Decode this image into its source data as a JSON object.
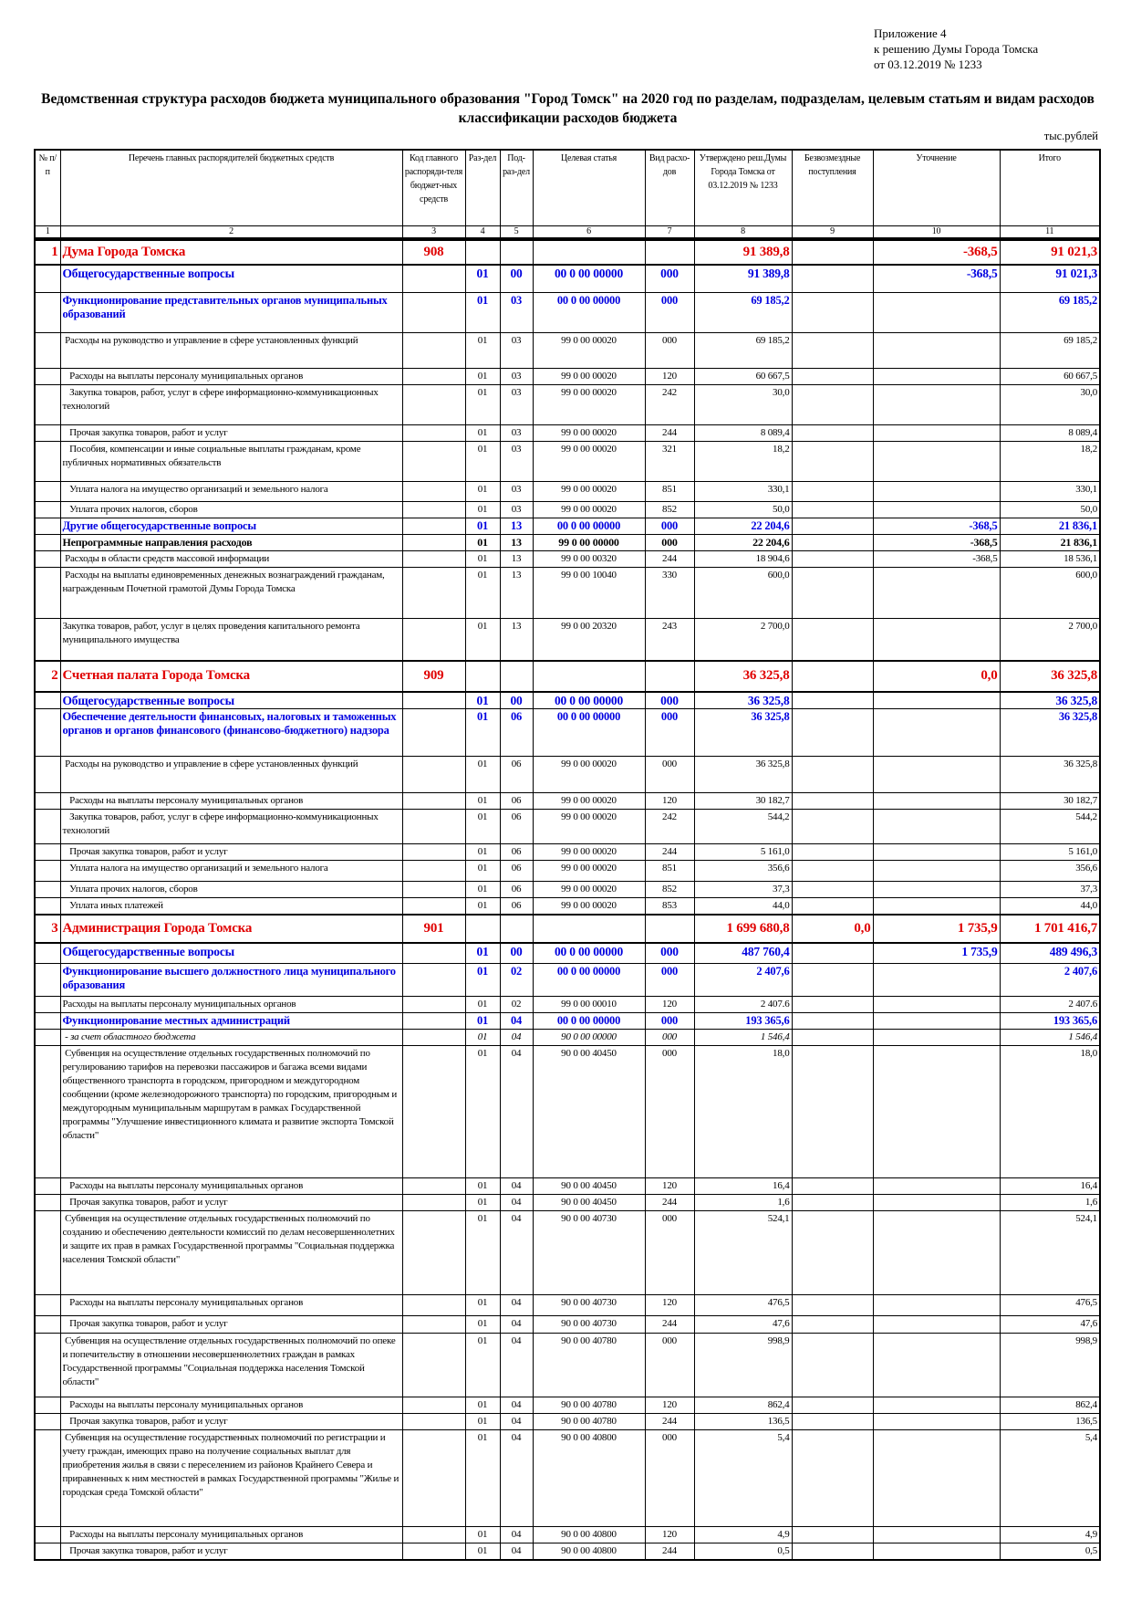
{
  "appendix": {
    "line1": "Приложение 4",
    "line2": "к решению Думы Города Томска",
    "line3": "от 03.12.2019 № 1233"
  },
  "title": "Ведомственная структура расходов бюджета муниципального образования \"Город Томск\" на 2020 год по разделам, подразделам, целевым статьям и видам расходов классификации расходов бюджета",
  "units": "тыс.рублей",
  "headers": [
    "№ п/п",
    "Перечень главных распорядителей бюджетных средств",
    "Код главного распоряди-теля бюджет-ных средств",
    "Раз-дел",
    "Под-раз-дел",
    "Целевая статья",
    "Вид расхо-дов",
    "Утверждено реш.Думы Города Томска от 03.12.2019 № 1233",
    "Безвозмездные поступления",
    "Уточнение",
    "Итого"
  ],
  "col_numbers": [
    "1",
    "2",
    "3",
    "4",
    "5",
    "6",
    "7",
    "8",
    "9",
    "10",
    "11"
  ],
  "colors": {
    "org": "#e00000",
    "section": "#0000e0"
  },
  "rows": [
    {
      "type": "org",
      "n": "1",
      "name": "Дума Города Томска",
      "code": "908",
      "rz": "",
      "pr": "",
      "cs": "",
      "vr": "",
      "c8": "91 389,8",
      "c9": "",
      "c10": "-368,5",
      "c11": "91 021,3"
    },
    {
      "type": "sec",
      "n": "",
      "name": "Общегосударственные вопросы",
      "code": "",
      "rz": "01",
      "pr": "00",
      "cs": "00 0 00 00000",
      "vr": "000",
      "c8": "91 389,8",
      "c9": "",
      "c10": "-368,5",
      "c11": "91 021,3"
    },
    {
      "type": "sub",
      "n": "",
      "name": "Функционирование представительных органов муниципальных образований",
      "code": "",
      "rz": "01",
      "pr": "03",
      "cs": "00 0 00 00000",
      "vr": "000",
      "c8": "69 185,2",
      "c9": "",
      "c10": "",
      "c11": "69 185,2"
    },
    {
      "type": "norm",
      "n": "",
      "name": " Расходы на руководство и управление в сфере установленных функций",
      "code": "",
      "rz": "01",
      "pr": "03",
      "cs": "99 0 00 00020",
      "vr": "000",
      "c8": "69 185,2",
      "c9": "",
      "c10": "",
      "c11": "69 185,2"
    },
    {
      "type": "norm",
      "n": "",
      "name": "   Расходы на выплаты персоналу муниципальных органов",
      "code": "",
      "rz": "01",
      "pr": "03",
      "cs": "99 0 00 00020",
      "vr": "120",
      "c8": "60 667,5",
      "c9": "",
      "c10": "",
      "c11": "60 667,5"
    },
    {
      "type": "norm",
      "n": "",
      "name": "   Закупка товаров, работ, услуг в сфере информационно-коммуникационных технологий",
      "code": "",
      "rz": "01",
      "pr": "03",
      "cs": "99 0 00 00020",
      "vr": "242",
      "c8": "30,0",
      "c9": "",
      "c10": "",
      "c11": "30,0"
    },
    {
      "type": "norm",
      "n": "",
      "name": "   Прочая закупка товаров, работ и услуг",
      "code": "",
      "rz": "01",
      "pr": "03",
      "cs": "99 0 00 00020",
      "vr": "244",
      "c8": "8 089,4",
      "c9": "",
      "c10": "",
      "c11": "8 089,4"
    },
    {
      "type": "norm",
      "n": "",
      "name": "   Пособия, компенсации и иные социальные выплаты гражданам, кроме публичных нормативных обязательств",
      "code": "",
      "rz": "01",
      "pr": "03",
      "cs": "99 0 00 00020",
      "vr": "321",
      "c8": "18,2",
      "c9": "",
      "c10": "",
      "c11": "18,2"
    },
    {
      "type": "norm",
      "n": "",
      "name": "   Уплата налога на имущество организаций и земельного налога",
      "code": "",
      "rz": "01",
      "pr": "03",
      "cs": "99 0 00 00020",
      "vr": "851",
      "c8": "330,1",
      "c9": "",
      "c10": "",
      "c11": "330,1"
    },
    {
      "type": "norm",
      "n": "",
      "name": "   Уплата прочих налогов, сборов",
      "code": "",
      "rz": "01",
      "pr": "03",
      "cs": "99 0 00 00020",
      "vr": "852",
      "c8": "50,0",
      "c9": "",
      "c10": "",
      "c11": "50,0"
    },
    {
      "type": "sub",
      "n": "",
      "name": "Другие общегосударственные вопросы",
      "code": "",
      "rz": "01",
      "pr": "13",
      "cs": "00 0 00 00000",
      "vr": "000",
      "c8": "22 204,6",
      "c9": "",
      "c10": "-368,5",
      "c11": "21 836,1"
    },
    {
      "type": "bold",
      "n": "",
      "name": "Непрограммные направления расходов",
      "code": "",
      "rz": "01",
      "pr": "13",
      "cs": "99 0 00 00000",
      "vr": "000",
      "c8": "22 204,6",
      "c9": "",
      "c10": "-368,5",
      "c11": "21 836,1"
    },
    {
      "type": "norm",
      "n": "",
      "name": " Расходы в области средств массовой информации",
      "code": "",
      "rz": "01",
      "pr": "13",
      "cs": "99 0 00 00320",
      "vr": "244",
      "c8": "18 904,6",
      "c9": "",
      "c10": "-368,5",
      "c11": "18 536,1"
    },
    {
      "type": "norm",
      "n": "",
      "name": " Расходы на выплаты единовременных денежных вознаграждений гражданам, награжденным Почетной грамотой Думы Города Томска",
      "code": "",
      "rz": "01",
      "pr": "13",
      "cs": "99 0 00 10040",
      "vr": "330",
      "c8": "600,0",
      "c9": "",
      "c10": "",
      "c11": "600,0"
    },
    {
      "type": "normb",
      "n": "",
      "name": "Закупка товаров, работ, услуг в целях проведения капитального ремонта муниципального имущества",
      "code": "",
      "rz": "01",
      "pr": "13",
      "cs": "99 0 00 20320",
      "vr": "243",
      "c8": "2 700,0",
      "c9": "",
      "c10": "",
      "c11": "2 700,0"
    },
    {
      "type": "org",
      "n": "2",
      "name": "Счетная палата Города Томска",
      "code": "909",
      "rz": "",
      "pr": "",
      "cs": "",
      "vr": "",
      "c8": "36 325,8",
      "c9": "",
      "c10": "0,0",
      "c11": "36 325,8"
    },
    {
      "type": "sec",
      "n": "",
      "name": "Общегосударственные вопросы",
      "code": "",
      "rz": "01",
      "pr": "00",
      "cs": "00 0 00 00000",
      "vr": "000",
      "c8": "36 325,8",
      "c9": "",
      "c10": "",
      "c11": "36 325,8"
    },
    {
      "type": "sub",
      "n": "",
      "name": "Обеспечение деятельности финансовых, налоговых и таможенных органов и органов финансового (финансово-бюджетного) надзора",
      "code": "",
      "rz": "01",
      "pr": "06",
      "cs": "00 0 00 00000",
      "vr": "000",
      "c8": "36 325,8",
      "c9": "",
      "c10": "",
      "c11": "36 325,8"
    },
    {
      "type": "norm",
      "n": "",
      "name": " Расходы на руководство и управление в сфере установленных функций",
      "code": "",
      "rz": "01",
      "pr": "06",
      "cs": "99 0 00 00020",
      "vr": "000",
      "c8": "36 325,8",
      "c9": "",
      "c10": "",
      "c11": "36 325,8"
    },
    {
      "type": "norm",
      "n": "",
      "name": "   Расходы на выплаты персоналу муниципальных органов",
      "code": "",
      "rz": "01",
      "pr": "06",
      "cs": "99 0 00 00020",
      "vr": "120",
      "c8": "30 182,7",
      "c9": "",
      "c10": "",
      "c11": "30 182,7"
    },
    {
      "type": "norm",
      "n": "",
      "name": "   Закупка товаров, работ, услуг в сфере информационно-коммуникационных технологий",
      "code": "",
      "rz": "01",
      "pr": "06",
      "cs": "99 0 00 00020",
      "vr": "242",
      "c8": "544,2",
      "c9": "",
      "c10": "",
      "c11": "544,2"
    },
    {
      "type": "norm",
      "n": "",
      "name": "   Прочая закупка товаров, работ и услуг",
      "code": "",
      "rz": "01",
      "pr": "06",
      "cs": "99 0 00 00020",
      "vr": "244",
      "c8": "5 161,0",
      "c9": "",
      "c10": "",
      "c11": "5 161,0"
    },
    {
      "type": "norm",
      "n": "",
      "name": "   Уплата налога на имущество организаций и земельного налога",
      "code": "",
      "rz": "01",
      "pr": "06",
      "cs": "99 0 00 00020",
      "vr": "851",
      "c8": "356,6",
      "c9": "",
      "c10": "",
      "c11": "356,6"
    },
    {
      "type": "norm",
      "n": "",
      "name": "   Уплата прочих налогов, сборов",
      "code": "",
      "rz": "01",
      "pr": "06",
      "cs": "99 0 00 00020",
      "vr": "852",
      "c8": "37,3",
      "c9": "",
      "c10": "",
      "c11": "37,3"
    },
    {
      "type": "norm",
      "n": "",
      "name": "   Уплата иных платежей",
      "code": "",
      "rz": "01",
      "pr": "06",
      "cs": "99 0 00 00020",
      "vr": "853",
      "c8": "44,0",
      "c9": "",
      "c10": "",
      "c11": "44,0"
    },
    {
      "type": "org",
      "n": "3",
      "name": "Администрация Города Томска",
      "code": "901",
      "rz": "",
      "pr": "",
      "cs": "",
      "vr": "",
      "c8": "1 699 680,8",
      "c9": "0,0",
      "c10": "1 735,9",
      "c11": "1 701 416,7"
    },
    {
      "type": "sec",
      "n": "",
      "name": "Общегосударственные вопросы",
      "code": "",
      "rz": "01",
      "pr": "00",
      "cs": "00 0 00 00000",
      "vr": "000",
      "c8": "487 760,4",
      "c9": "",
      "c10": "1 735,9",
      "c11": "489 496,3"
    },
    {
      "type": "sub",
      "n": "",
      "name": "Функционирование высшего должностного лица муниципального образования",
      "code": "",
      "rz": "01",
      "pr": "02",
      "cs": "00 0 00 00000",
      "vr": "000",
      "c8": "2 407,6",
      "c9": "",
      "c10": "",
      "c11": "2 407,6"
    },
    {
      "type": "normb",
      "n": "",
      "name": "Расходы на выплаты персоналу муниципальных органов",
      "code": "",
      "rz": "01",
      "pr": "02",
      "cs": "99 0 00 00010",
      "vr": "120",
      "c8": "2 407.6",
      "c9": "",
      "c10": "",
      "c11": "2 407.6"
    },
    {
      "type": "sub",
      "n": "",
      "name": "Функционирование местных администраций",
      "code": "",
      "rz": "01",
      "pr": "04",
      "cs": "00 0 00 00000",
      "vr": "000",
      "c8": "193 365,6",
      "c9": "",
      "c10": "",
      "c11": "193 365,6"
    },
    {
      "type": "ital",
      "n": "",
      "name": " - за счет областного бюджета",
      "code": "",
      "rz": "01",
      "pr": "04",
      "cs": "90 0 00 00000",
      "vr": "000",
      "c8": "1 546,4",
      "c9": "",
      "c10": "",
      "c11": "1 546,4"
    },
    {
      "type": "norm",
      "n": "",
      "name": " Субвенция на осуществление отдельных государственных полномочий по регулированию тарифов на перевозки пассажиров и багажа всеми видами общественного транспорта в городском, пригородном и междугородном сообщении (кроме железнодорожного транспорта) по городским, пригородным и междугородным муниципальным маршрутам в рамках Государственной программы \"Улучшение инвестиционного климата и развитие экспорта Томской области\"",
      "code": "",
      "rz": "01",
      "pr": "04",
      "cs": "90 0 00 40450",
      "vr": "000",
      "c8": "18,0",
      "c9": "",
      "c10": "",
      "c11": "18,0"
    },
    {
      "type": "norm",
      "n": "",
      "name": "   Расходы на выплаты персоналу муниципальных органов",
      "code": "",
      "rz": "01",
      "pr": "04",
      "cs": "90 0 00 40450",
      "vr": "120",
      "c8": "16,4",
      "c9": "",
      "c10": "",
      "c11": "16,4"
    },
    {
      "type": "norm",
      "n": "",
      "name": "   Прочая закупка товаров, работ и услуг",
      "code": "",
      "rz": "01",
      "pr": "04",
      "cs": "90 0 00 40450",
      "vr": "244",
      "c8": "1,6",
      "c9": "",
      "c10": "",
      "c11": "1,6"
    },
    {
      "type": "norm",
      "n": "",
      "name": " Субвенция на осуществление отдельных государственных полномочий по созданию и обеспечению деятельности комиссий по делам несовершеннолетних и защите их прав в рамках Государственной программы \"Социальная поддержка населения Томской области\"",
      "code": "",
      "rz": "01",
      "pr": "04",
      "cs": "90 0 00 40730",
      "vr": "000",
      "c8": "524,1",
      "c9": "",
      "c10": "",
      "c11": "524,1"
    },
    {
      "type": "norm",
      "n": "",
      "name": "   Расходы на выплаты персоналу муниципальных органов",
      "code": "",
      "rz": "01",
      "pr": "04",
      "cs": "90 0 00 40730",
      "vr": "120",
      "c8": "476,5",
      "c9": "",
      "c10": "",
      "c11": "476,5"
    },
    {
      "type": "norm",
      "n": "",
      "name": "   Прочая закупка товаров, работ и услуг",
      "code": "",
      "rz": "01",
      "pr": "04",
      "cs": "90 0 00 40730",
      "vr": "244",
      "c8": "47,6",
      "c9": "",
      "c10": "",
      "c11": "47,6"
    },
    {
      "type": "norm",
      "n": "",
      "name": " Субвенция на осуществление отдельных государственных полномочий по опеке и попечительству в отношении несовершеннолетних граждан в рамках Государственной программы \"Социальная поддержка населения Томской области\"",
      "code": "",
      "rz": "01",
      "pr": "04",
      "cs": "90 0 00 40780",
      "vr": "000",
      "c8": "998,9",
      "c9": "",
      "c10": "",
      "c11": "998,9"
    },
    {
      "type": "norm",
      "n": "",
      "name": "   Расходы на выплаты персоналу муниципальных органов",
      "code": "",
      "rz": "01",
      "pr": "04",
      "cs": "90 0 00 40780",
      "vr": "120",
      "c8": "862,4",
      "c9": "",
      "c10": "",
      "c11": "862,4"
    },
    {
      "type": "norm",
      "n": "",
      "name": "   Прочая закупка товаров, работ и услуг",
      "code": "",
      "rz": "01",
      "pr": "04",
      "cs": "90 0 00 40780",
      "vr": "244",
      "c8": "136,5",
      "c9": "",
      "c10": "",
      "c11": "136,5"
    },
    {
      "type": "norm",
      "n": "",
      "name": " Субвенция на осуществление государственных полномочий по регистрации и учету граждан, имеющих право на получение социальных выплат для приобретения жилья в связи с переселением из районов Крайнего Севера и приравненных к ним местностей в рамках Государственной программы \"Жилье и городская среда Томской области\"",
      "code": "",
      "rz": "01",
      "pr": "04",
      "cs": "90 0 00 40800",
      "vr": "000",
      "c8": "5,4",
      "c9": "",
      "c10": "",
      "c11": "5,4"
    },
    {
      "type": "norm",
      "n": "",
      "name": "   Расходы на выплаты персоналу муниципальных органов",
      "code": "",
      "rz": "01",
      "pr": "04",
      "cs": "90 0 00 40800",
      "vr": "120",
      "c8": "4,9",
      "c9": "",
      "c10": "",
      "c11": "4,9"
    },
    {
      "type": "norm",
      "n": "",
      "name": "   Прочая закупка товаров, работ и услуг",
      "code": "",
      "rz": "01",
      "pr": "04",
      "cs": "90 0 00 40800",
      "vr": "244",
      "c8": "0,5",
      "c9": "",
      "c10": "",
      "c11": "0,5"
    }
  ]
}
